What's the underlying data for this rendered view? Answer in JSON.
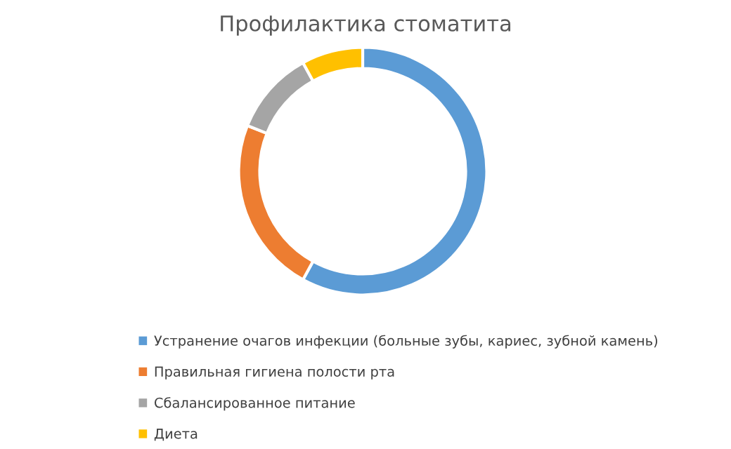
{
  "chart_data": {
    "type": "donut",
    "title": "Профилактика стоматита",
    "categories": [
      "Устранение очагов инфекции (больные зубы, кариес, зубной камень)",
      "Правильная гигиена полости рта",
      "Сбалансированное питание",
      "Диета"
    ],
    "values": [
      58,
      23,
      11,
      8
    ],
    "colors": [
      "#5b9bd5",
      "#ed7d31",
      "#a5a5a5",
      "#ffc000"
    ],
    "legend": "bottom"
  }
}
